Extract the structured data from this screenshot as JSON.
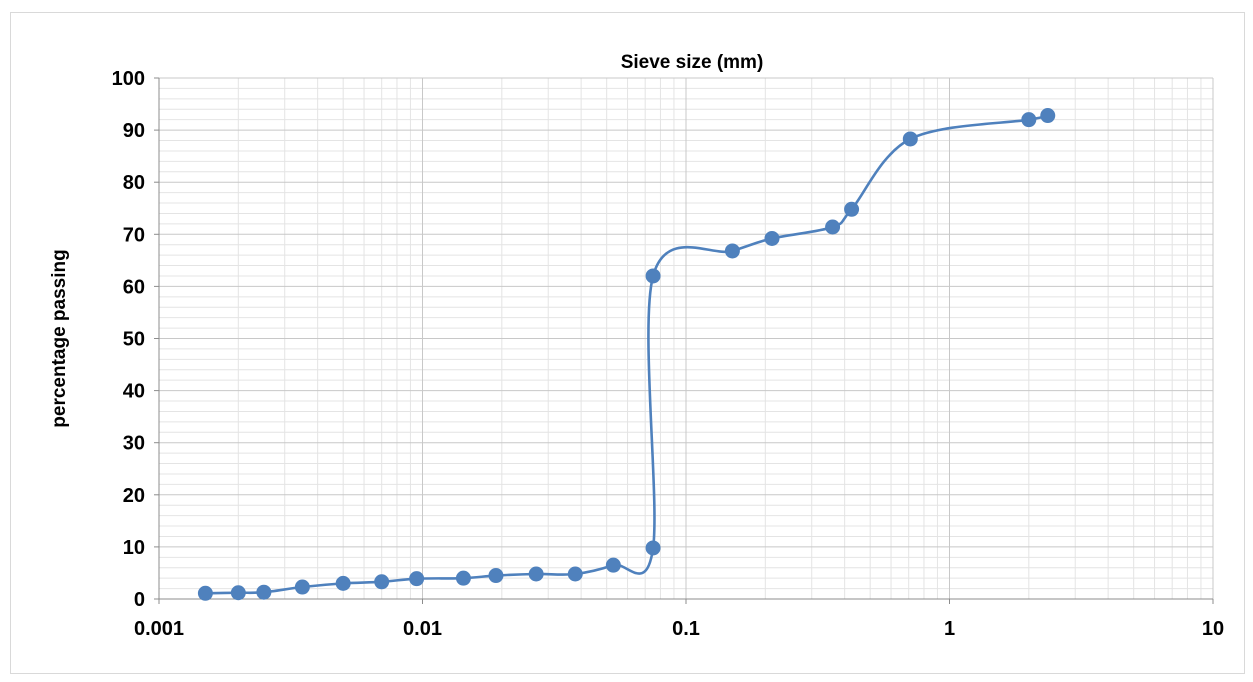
{
  "chart_data": {
    "type": "scatter",
    "title": "",
    "xlabel": "Sieve size (mm)",
    "ylabel": "percentage passing",
    "x_scale": "log",
    "xlim": [
      0.001,
      10
    ],
    "ylim": [
      0,
      100
    ],
    "x_ticks": [
      0.001,
      0.01,
      0.1,
      1,
      10
    ],
    "x_tick_labels": [
      "0.001",
      "0.01",
      "0.1",
      "1",
      "10"
    ],
    "y_ticks": [
      0,
      10,
      20,
      30,
      40,
      50,
      60,
      70,
      80,
      90,
      100
    ],
    "y_tick_labels": [
      "0",
      "10",
      "20",
      "30",
      "40",
      "50",
      "60",
      "70",
      "80",
      "90",
      "100"
    ],
    "grid": true,
    "legend": "none",
    "xlabel_position": "top",
    "line_style": "smooth line with markers",
    "color": "#4f81bd",
    "series": [
      {
        "x": [
          0.0015,
          0.002,
          0.0025,
          0.0035,
          0.005,
          0.007,
          0.0095,
          0.0143,
          0.019,
          0.027,
          0.038,
          0.053,
          0.075,
          0.075,
          0.15,
          0.212,
          0.36,
          0.425,
          0.71,
          2.0,
          2.36
        ],
        "y": [
          1.1,
          1.2,
          1.3,
          2.3,
          3.0,
          3.3,
          3.9,
          4.0,
          4.5,
          4.8,
          4.8,
          6.5,
          9.8,
          62.0,
          66.8,
          69.2,
          71.4,
          74.8,
          88.3,
          92.0,
          92.8
        ]
      }
    ]
  }
}
